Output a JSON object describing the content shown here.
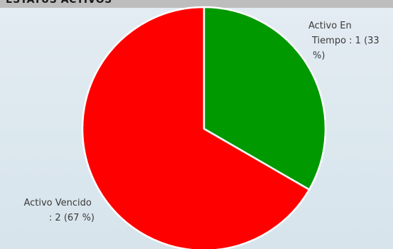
{
  "header": {
    "title": "ESTATUS ACTIVOS"
  },
  "chart_data": {
    "type": "pie",
    "title": "ESTATUS ACTIVOS",
    "slices": [
      {
        "label": "Activo En Tiempo",
        "value": 1,
        "percent": 33,
        "color": "#009900",
        "label_lines": [
          "Activo En",
          "Tiempo : 1 (33",
          "%)"
        ]
      },
      {
        "label": "Activo Vencido",
        "value": 2,
        "percent": 67,
        "color": "#ff0000",
        "label_lines": [
          "Activo Vencido",
          ": 2 (67 %)"
        ]
      }
    ]
  }
}
